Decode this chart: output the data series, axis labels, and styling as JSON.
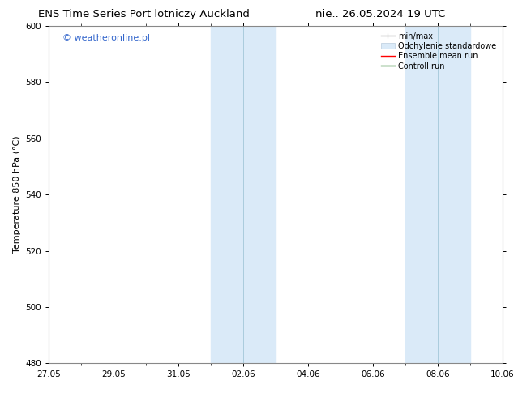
{
  "title_left": "ENS Time Series Port lotniczy Auckland",
  "title_right": "nie.. 26.05.2024 19 UTC",
  "ylabel": "Temperature 850 hPa (°C)",
  "ylim": [
    480,
    600
  ],
  "yticks": [
    480,
    500,
    520,
    540,
    560,
    580,
    600
  ],
  "xtick_labels": [
    "27.05",
    "29.05",
    "31.05",
    "02.06",
    "04.06",
    "06.06",
    "08.06",
    "10.06"
  ],
  "xtick_positions": [
    0,
    2,
    4,
    6,
    8,
    10,
    12,
    14
  ],
  "xlim": [
    0,
    14
  ],
  "shaded_regions": [
    {
      "start": 5.0,
      "end": 7.0,
      "color": "#daeaf8"
    },
    {
      "start": 11.0,
      "end": 13.0,
      "color": "#daeaf8"
    }
  ],
  "shaded_dividers": [
    6.0,
    12.0
  ],
  "watermark_text": "© weatheronline.pl",
  "watermark_color": "#3366cc",
  "background_color": "#ffffff",
  "title_fontsize": 9.5,
  "tick_fontsize": 7.5,
  "ylabel_fontsize": 8,
  "watermark_fontsize": 8,
  "legend_fontsize": 7,
  "spine_color": "#888888",
  "divider_color": "#aaccdd"
}
